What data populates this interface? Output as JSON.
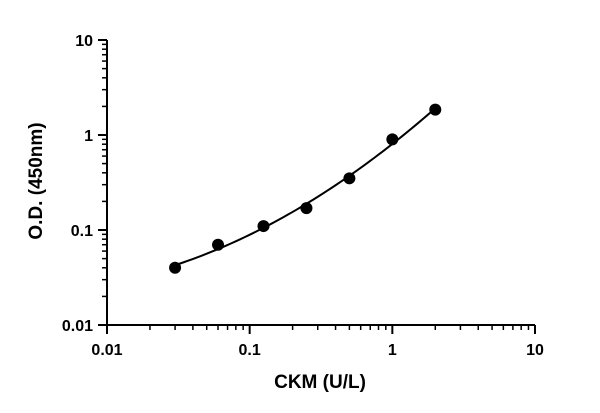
{
  "chart_data": {
    "type": "scatter",
    "xlabel": "CKM (U/L)",
    "ylabel": "O.D. (450nm)",
    "xscale": "log",
    "yscale": "log",
    "xlim": [
      0.01,
      10
    ],
    "ylim": [
      0.01,
      10
    ],
    "x_ticks": [
      "0.01",
      "0.1",
      "1",
      "10"
    ],
    "y_ticks": [
      "0.01",
      "0.1",
      "1",
      "10"
    ],
    "grid": false,
    "series": [
      {
        "x": [
          0.03,
          0.06,
          0.125,
          0.25,
          0.5,
          1,
          2
        ],
        "y": [
          0.04,
          0.07,
          0.11,
          0.17,
          0.35,
          0.9,
          1.85
        ]
      }
    ],
    "fit_curve": true,
    "color": "#000000"
  }
}
